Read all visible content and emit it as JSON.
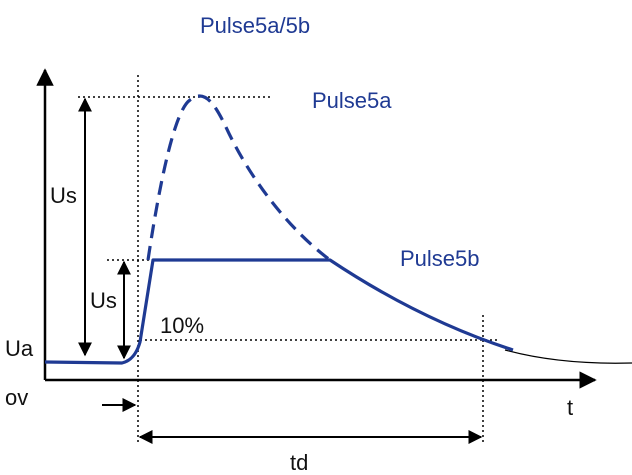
{
  "title": "Pulse5a/5b",
  "labels": {
    "pulse5a": "Pulse5a",
    "pulse5b": "Pulse5b",
    "us_top": "Us",
    "us_bottom": "Us",
    "ua": "Ua",
    "ov": "ov",
    "t_axis": "t",
    "td": "td",
    "ten_percent": "10%"
  },
  "colors": {
    "pulse": "#1f3a93",
    "axes": "#000000",
    "guides": "#000000"
  }
}
